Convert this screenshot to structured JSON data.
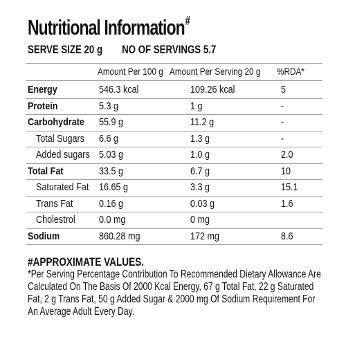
{
  "title": "Nutritional Information",
  "title_mark": "#",
  "serve_size": "SERVE SIZE 20 g",
  "servings": "NO OF SERVINGS 5.7",
  "headers": [
    "Amount Per 100 g",
    "Amount Per Serving 20 g",
    "%RDA*"
  ],
  "rows": [
    {
      "name": "Energy",
      "per100": "546.3 kcal",
      "serving": "109.26 kcal",
      "rda": "5",
      "bold": true
    },
    {
      "name": "Protein",
      "per100": "5.3 g",
      "serving": "1 g",
      "rda": "-",
      "bold": true
    },
    {
      "name": "Carbohydrate",
      "per100": "55.9 g",
      "serving": "11.2 g",
      "rda": "-",
      "bold": true
    },
    {
      "name": "Total Sugars",
      "per100": "6.6 g",
      "serving": "1.3 g",
      "rda": "-",
      "bold": false
    },
    {
      "name": "Added sugars",
      "per100": "5.03 g",
      "serving": "1.0 g",
      "rda": "2.0",
      "bold": false
    },
    {
      "name": "Total Fat",
      "per100": "33.5 g",
      "serving": "6.7 g",
      "rda": "10",
      "bold": true
    },
    {
      "name": "Saturated Fat",
      "per100": "16.65 g",
      "serving": "3.3 g",
      "rda": "15.1",
      "bold": false
    },
    {
      "name": "Trans Fat",
      "per100": "0.16 g",
      "serving": "0.03 g",
      "rda": "1.6",
      "bold": false
    },
    {
      "name": "Cholestrol",
      "per100": "0.0 mg",
      "serving": "0 mg",
      "rda": "",
      "bold": false
    },
    {
      "name": "Sodium",
      "per100": "860.28 mg",
      "serving": "172 mg",
      "rda": "8.6",
      "bold": true
    }
  ],
  "footnote_title": "#APPROXIMATE VALUES.",
  "footnote_lines": [
    "*Per Serving Percentage Contribution To Recommended Dietary Allowance Are",
    "Calculated On The Basis Of 2000 Kcal Energy, 67 g Total Fat, 22 g Saturated",
    "Fat, 2 g Trans Fat, 50 g Added Sugar & 2000 mg Of Sodium Requirement For",
    "An Average Adult Every Day."
  ]
}
